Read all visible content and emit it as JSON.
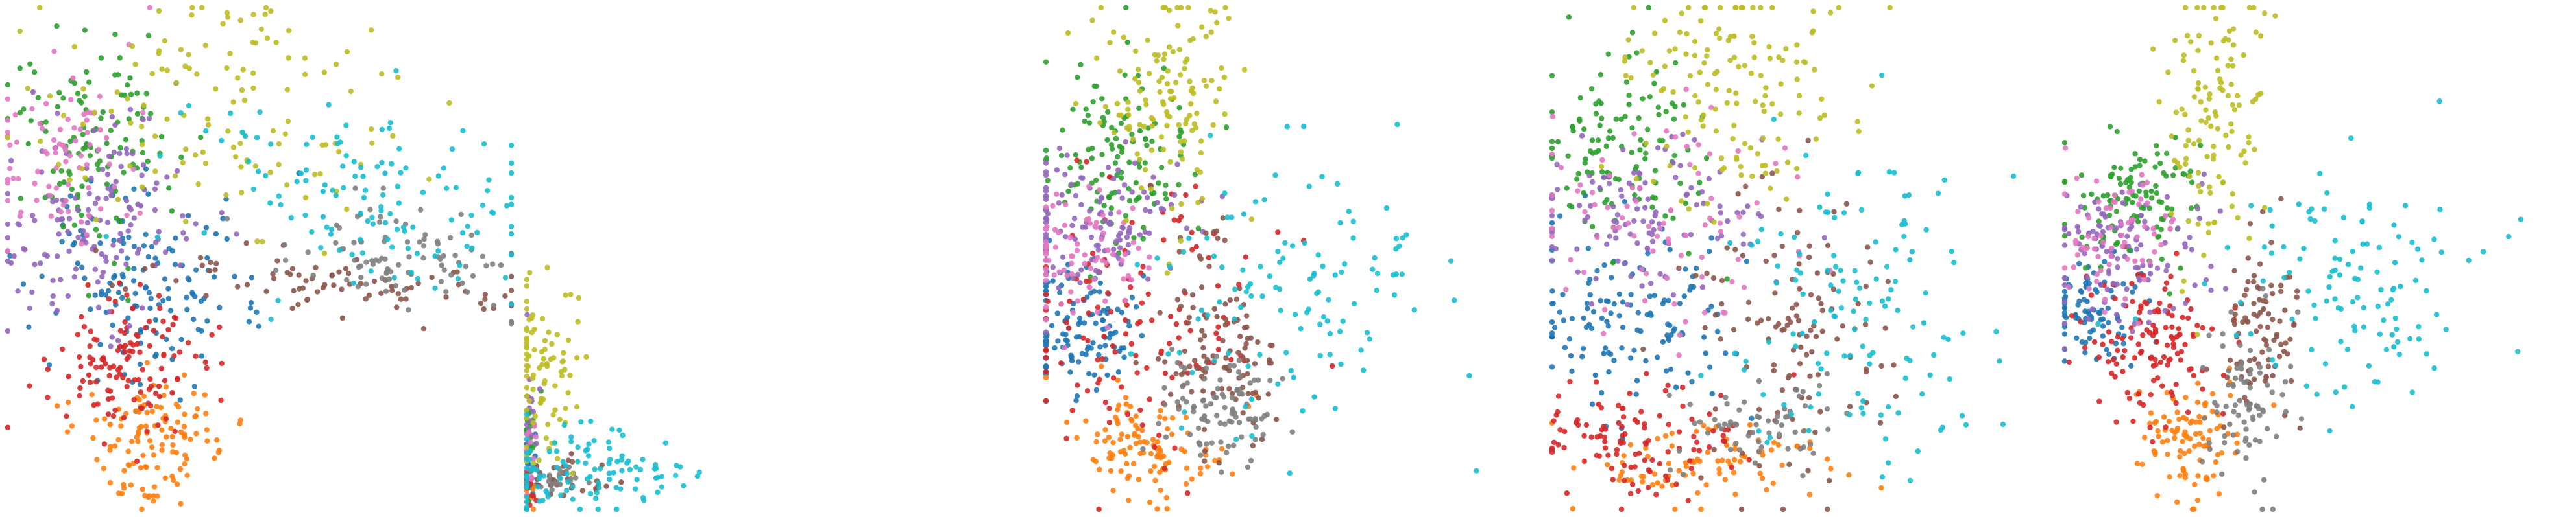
{
  "chart_data": [
    {
      "type": "scatter",
      "panel": 1,
      "title": "",
      "xlabel": "",
      "ylabel": "",
      "grid": false,
      "axes_visible": false,
      "legend": "none",
      "point_radius_hint": "small",
      "series": [
        {
          "color": "#1f77b4",
          "anchor": [
            0.26,
            0.54
          ],
          "spread": [
            0.11,
            0.11
          ],
          "count": 140
        },
        {
          "color": "#ff7f0e",
          "anchor": [
            0.28,
            0.86
          ],
          "spread": [
            0.07,
            0.06
          ],
          "count": 120
        },
        {
          "color": "#2ca02c",
          "anchor": [
            0.17,
            0.28
          ],
          "spread": [
            0.08,
            0.1
          ],
          "count": 120
        },
        {
          "color": "#d62728",
          "anchor": [
            0.24,
            0.7
          ],
          "spread": [
            0.08,
            0.08
          ],
          "count": 130
        },
        {
          "color": "#9467bd",
          "anchor": [
            0.17,
            0.42
          ],
          "spread": [
            0.1,
            0.11
          ],
          "count": 140
        },
        {
          "color": "#8c564b",
          "anchor": [
            0.66,
            0.54
          ],
          "spread": [
            0.2,
            0.03
          ],
          "count": 80
        },
        {
          "color": "#e377c2",
          "anchor": [
            0.12,
            0.3
          ],
          "spread": [
            0.08,
            0.1
          ],
          "count": 80
        },
        {
          "color": "#7f7f7f",
          "anchor": [
            0.78,
            0.5
          ],
          "spread": [
            0.12,
            0.05
          ],
          "count": 90
        },
        {
          "color": "#bcbd22",
          "anchor": [
            0.38,
            0.2
          ],
          "spread": [
            0.2,
            0.15
          ],
          "count": 130
        },
        {
          "color": "#17becf",
          "anchor": [
            0.72,
            0.38
          ],
          "spread": [
            0.18,
            0.1
          ],
          "count": 130
        }
      ]
    },
    {
      "type": "scatter",
      "panel": 2,
      "title": "",
      "xlabel": "",
      "ylabel": "",
      "grid": false,
      "axes_visible": false,
      "legend": "none",
      "point_radius_hint": "small",
      "series": [
        {
          "color": "#1f77b4",
          "anchor": [
            0.005,
            0.92
          ],
          "spread": [
            0.008,
            0.04
          ],
          "count": 20
        },
        {
          "color": "#ff7f0e",
          "anchor": [
            0.005,
            0.95
          ],
          "spread": [
            0.008,
            0.03
          ],
          "count": 10
        },
        {
          "color": "#2ca02c",
          "anchor": [
            0.005,
            0.84
          ],
          "spread": [
            0.01,
            0.05
          ],
          "count": 20
        },
        {
          "color": "#d62728",
          "anchor": [
            0.005,
            0.96
          ],
          "spread": [
            0.01,
            0.02
          ],
          "count": 15
        },
        {
          "color": "#9467bd",
          "anchor": [
            0.005,
            0.8
          ],
          "spread": [
            0.01,
            0.06
          ],
          "count": 20
        },
        {
          "color": "#8c564b",
          "anchor": [
            0.06,
            0.95
          ],
          "spread": [
            0.04,
            0.02
          ],
          "count": 30
        },
        {
          "color": "#e377c2",
          "anchor": [
            0.005,
            0.88
          ],
          "spread": [
            0.01,
            0.04
          ],
          "count": 15
        },
        {
          "color": "#7f7f7f",
          "anchor": [
            0.05,
            0.93
          ],
          "spread": [
            0.03,
            0.02
          ],
          "count": 20
        },
        {
          "color": "#bcbd22",
          "anchor": [
            0.03,
            0.71
          ],
          "spread": [
            0.04,
            0.1
          ],
          "count": 90
        },
        {
          "color": "#17becf",
          "anchor": [
            0.12,
            0.92
          ],
          "spread": [
            0.1,
            0.05
          ],
          "count": 110
        }
      ]
    },
    {
      "type": "scatter",
      "panel": 3,
      "title": "",
      "xlabel": "",
      "ylabel": "",
      "grid": false,
      "axes_visible": false,
      "legend": "none",
      "point_radius_hint": "small",
      "series": [
        {
          "color": "#1f77b4",
          "anchor": [
            0.06,
            0.64
          ],
          "spread": [
            0.06,
            0.07
          ],
          "count": 120
        },
        {
          "color": "#ff7f0e",
          "anchor": [
            0.2,
            0.88
          ],
          "spread": [
            0.08,
            0.05
          ],
          "count": 110
        },
        {
          "color": "#2ca02c",
          "anchor": [
            0.14,
            0.3
          ],
          "spread": [
            0.08,
            0.1
          ],
          "count": 120
        },
        {
          "color": "#d62728",
          "anchor": [
            0.18,
            0.62
          ],
          "spread": [
            0.12,
            0.15
          ],
          "count": 130
        },
        {
          "color": "#9467bd",
          "anchor": [
            0.1,
            0.42
          ],
          "spread": [
            0.09,
            0.08
          ],
          "count": 120
        },
        {
          "color": "#8c564b",
          "anchor": [
            0.36,
            0.66
          ],
          "spread": [
            0.06,
            0.1
          ],
          "count": 110
        },
        {
          "color": "#e377c2",
          "anchor": [
            0.08,
            0.5
          ],
          "spread": [
            0.07,
            0.08
          ],
          "count": 80
        },
        {
          "color": "#7f7f7f",
          "anchor": [
            0.34,
            0.8
          ],
          "spread": [
            0.06,
            0.06
          ],
          "count": 90
        },
        {
          "color": "#bcbd22",
          "anchor": [
            0.24,
            0.16
          ],
          "spread": [
            0.07,
            0.12
          ],
          "count": 130
        },
        {
          "color": "#17becf",
          "anchor": [
            0.48,
            0.58
          ],
          "spread": [
            0.14,
            0.12
          ],
          "count": 120
        }
      ]
    },
    {
      "type": "scatter",
      "panel": 4,
      "title": "",
      "xlabel": "",
      "ylabel": "",
      "grid": false,
      "axes_visible": false,
      "legend": "none",
      "point_radius_hint": "small",
      "series": [
        {
          "color": "#1f77b4",
          "anchor": [
            0.16,
            0.62
          ],
          "spread": [
            0.1,
            0.1
          ],
          "count": 130
        },
        {
          "color": "#ff7f0e",
          "anchor": [
            0.3,
            0.9
          ],
          "spread": [
            0.12,
            0.04
          ],
          "count": 90
        },
        {
          "color": "#2ca02c",
          "anchor": [
            0.14,
            0.28
          ],
          "spread": [
            0.08,
            0.1
          ],
          "count": 120
        },
        {
          "color": "#d62728",
          "anchor": [
            0.14,
            0.86
          ],
          "spread": [
            0.12,
            0.06
          ],
          "count": 110
        },
        {
          "color": "#9467bd",
          "anchor": [
            0.18,
            0.42
          ],
          "spread": [
            0.12,
            0.08
          ],
          "count": 110
        },
        {
          "color": "#8c564b",
          "anchor": [
            0.48,
            0.66
          ],
          "spread": [
            0.1,
            0.16
          ],
          "count": 120
        },
        {
          "color": "#e377c2",
          "anchor": [
            0.2,
            0.44
          ],
          "spread": [
            0.14,
            0.1
          ],
          "count": 80
        },
        {
          "color": "#7f7f7f",
          "anchor": [
            0.4,
            0.84
          ],
          "spread": [
            0.08,
            0.05
          ],
          "count": 60
        },
        {
          "color": "#bcbd22",
          "anchor": [
            0.34,
            0.16
          ],
          "spread": [
            0.12,
            0.12
          ],
          "count": 140
        },
        {
          "color": "#17becf",
          "anchor": [
            0.62,
            0.6
          ],
          "spread": [
            0.12,
            0.16
          ],
          "count": 130
        }
      ]
    },
    {
      "type": "scatter",
      "panel": 5,
      "title": "",
      "xlabel": "",
      "ylabel": "",
      "grid": false,
      "axes_visible": false,
      "legend": "none",
      "point_radius_hint": "small",
      "series": [
        {
          "color": "#1f77b4",
          "anchor": [
            0.06,
            0.6
          ],
          "spread": [
            0.05,
            0.05
          ],
          "count": 90
        },
        {
          "color": "#ff7f0e",
          "anchor": [
            0.24,
            0.86
          ],
          "spread": [
            0.06,
            0.06
          ],
          "count": 100
        },
        {
          "color": "#2ca02c",
          "anchor": [
            0.14,
            0.4
          ],
          "spread": [
            0.07,
            0.07
          ],
          "count": 110
        },
        {
          "color": "#d62728",
          "anchor": [
            0.18,
            0.66
          ],
          "spread": [
            0.07,
            0.08
          ],
          "count": 130
        },
        {
          "color": "#9467bd",
          "anchor": [
            0.12,
            0.5
          ],
          "spread": [
            0.08,
            0.07
          ],
          "count": 110
        },
        {
          "color": "#8c564b",
          "anchor": [
            0.39,
            0.62
          ],
          "spread": [
            0.04,
            0.1
          ],
          "count": 90
        },
        {
          "color": "#e377c2",
          "anchor": [
            0.11,
            0.46
          ],
          "spread": [
            0.06,
            0.07
          ],
          "count": 70
        },
        {
          "color": "#7f7f7f",
          "anchor": [
            0.36,
            0.78
          ],
          "spread": [
            0.04,
            0.08
          ],
          "count": 80
        },
        {
          "color": "#bcbd22",
          "anchor": [
            0.3,
            0.2
          ],
          "spread": [
            0.05,
            0.15
          ],
          "count": 120
        },
        {
          "color": "#17becf",
          "anchor": [
            0.56,
            0.56
          ],
          "spread": [
            0.14,
            0.12
          ],
          "count": 120
        }
      ]
    }
  ]
}
